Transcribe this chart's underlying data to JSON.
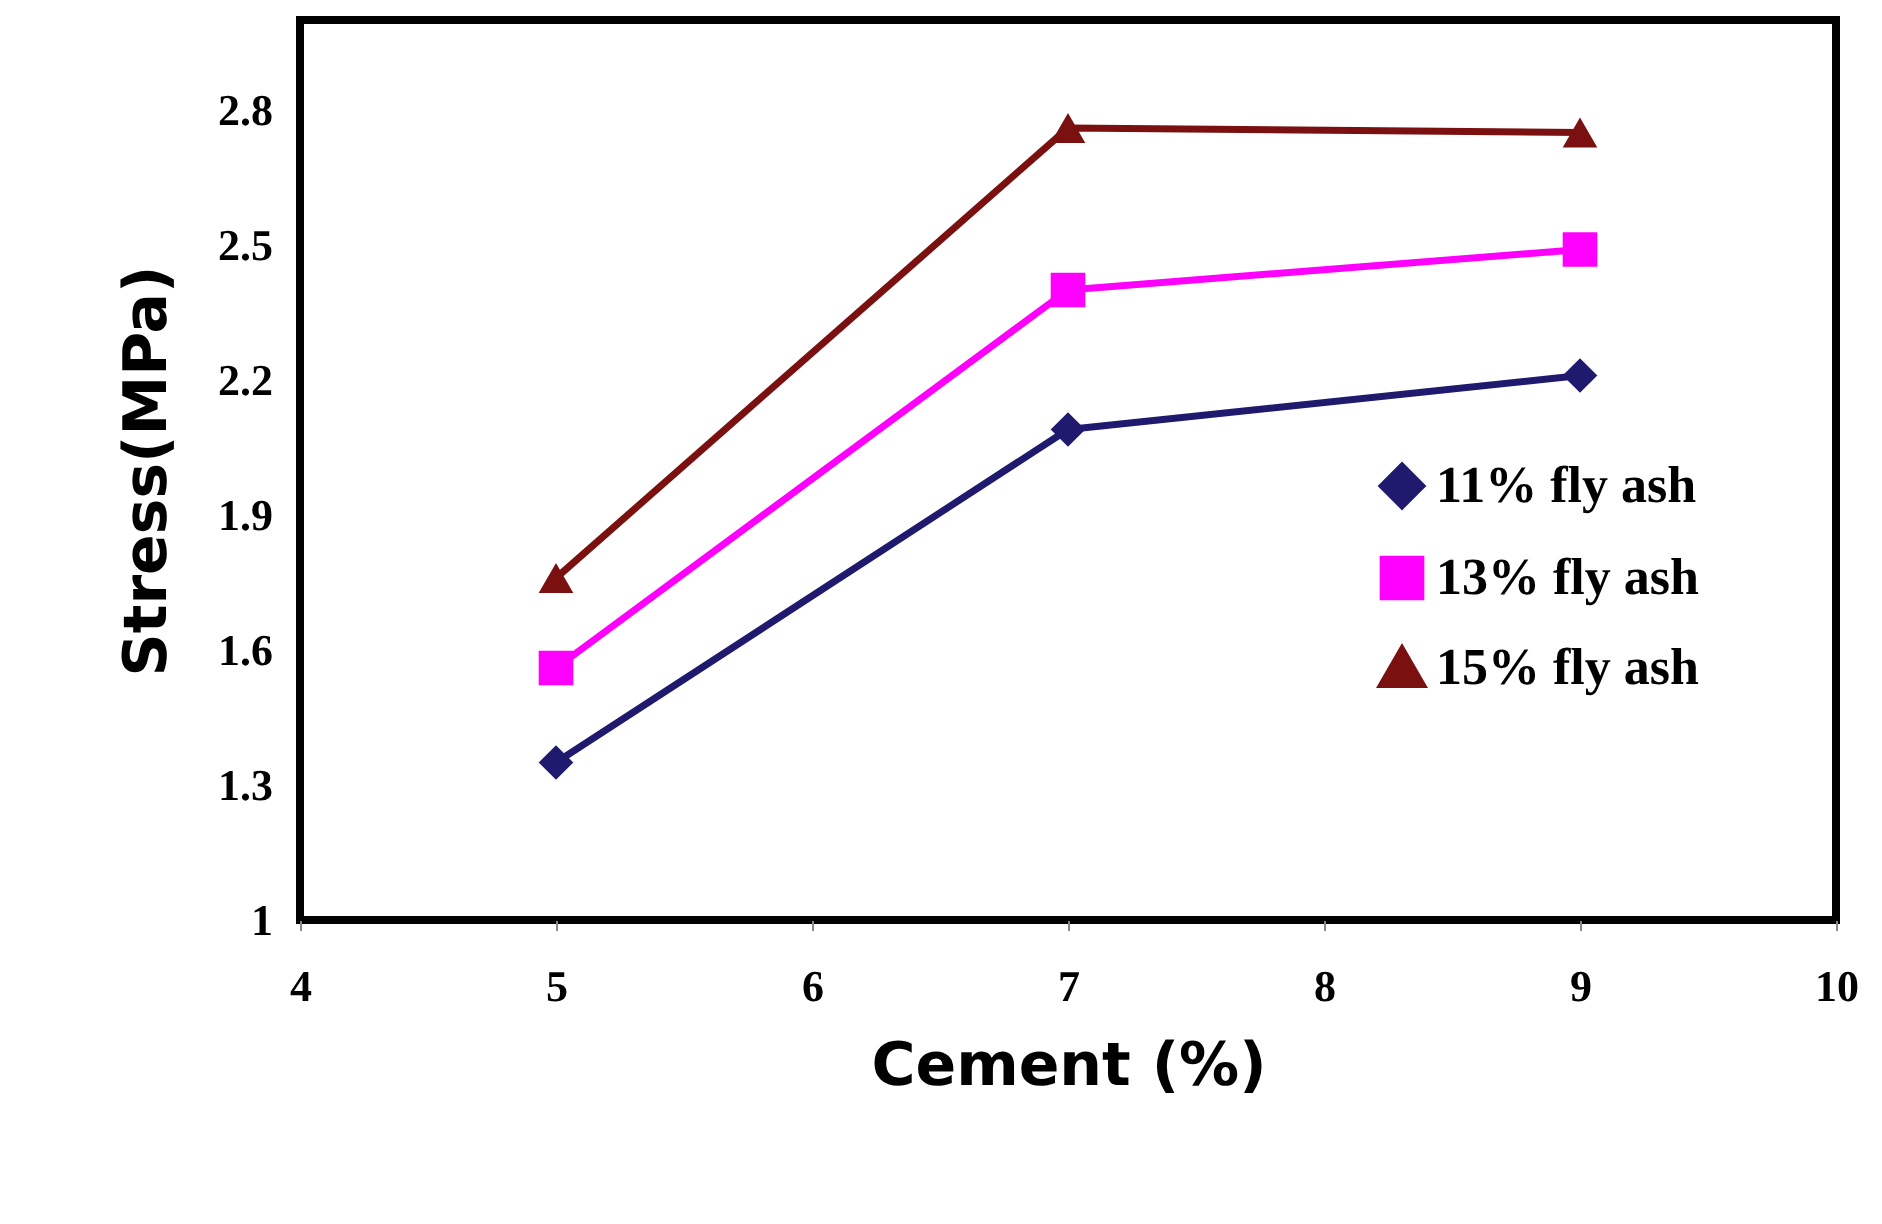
{
  "chart_data": {
    "type": "line",
    "xlabel": "Cement (%)",
    "ylabel": "Stress(MPa)",
    "x": [
      5,
      7,
      9
    ],
    "xlim": [
      4,
      10
    ],
    "xticks": [
      4,
      5,
      6,
      7,
      8,
      9,
      10
    ],
    "ylim": [
      1,
      3
    ],
    "yticks": [
      1,
      1.3,
      1.6,
      1.9,
      2.2,
      2.5,
      2.8
    ],
    "series": [
      {
        "name": "11% fly ash",
        "color": "#1f1a6e",
        "marker": "diamond",
        "values": [
          1.35,
          2.09,
          2.21
        ]
      },
      {
        "name": "13% fly ash",
        "color": "#ff00ff",
        "marker": "square",
        "values": [
          1.56,
          2.4,
          2.49
        ]
      },
      {
        "name": "15% fly ash",
        "color": "#7b1010",
        "marker": "triangle",
        "values": [
          1.76,
          2.76,
          2.75
        ]
      }
    ],
    "legend": "right",
    "grid": false,
    "line_style": "solid"
  }
}
